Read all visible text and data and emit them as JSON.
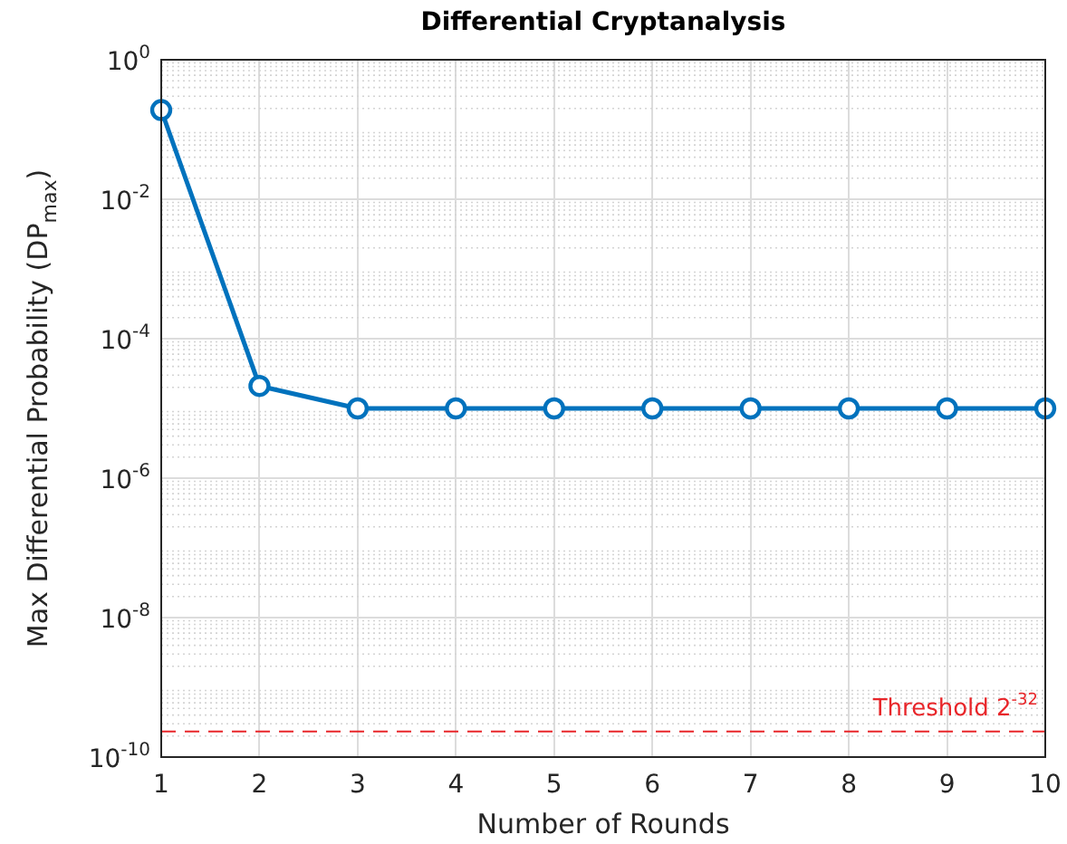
{
  "chart_data": {
    "type": "line",
    "title": "Differential Cryptanalysis",
    "xlabel": "Number of Rounds",
    "ylabel": "Max Differential Probability (DP$_{max}$)",
    "x": [
      1,
      2,
      3,
      4,
      5,
      6,
      7,
      8,
      9,
      10
    ],
    "series": [
      {
        "color": "#0072bd",
        "values": [
          0.19,
          2.1e-05,
          1e-05,
          1e-05,
          1e-05,
          1e-05,
          1e-05,
          1e-05,
          1e-05,
          1e-05
        ]
      }
    ],
    "xlim": [
      1,
      10
    ],
    "xticks": [
      1,
      2,
      3,
      4,
      5,
      6,
      7,
      8,
      9,
      10
    ],
    "ylim": [
      1e-10,
      1
    ],
    "yticks": [
      {
        "value": 1e-10,
        "label": "10$^{-10}$"
      },
      {
        "value": 1e-08,
        "label": "10$^{-8}$"
      },
      {
        "value": 1e-06,
        "label": "10$^{-6}$"
      },
      {
        "value": 0.0001,
        "label": "10$^{-4}$"
      },
      {
        "value": 0.01,
        "label": "10$^{-2}$"
      },
      {
        "value": 1,
        "label": "10$^{0}$"
      }
    ],
    "log": "y",
    "grid": true,
    "marker": "circle",
    "line_style": "solid",
    "ref_lines": [
      {
        "axis": "y",
        "value": 2.33e-10,
        "label": "Threshold 2$^{-32}$",
        "color": "#e8262a",
        "line_style": "dashed"
      }
    ]
  }
}
